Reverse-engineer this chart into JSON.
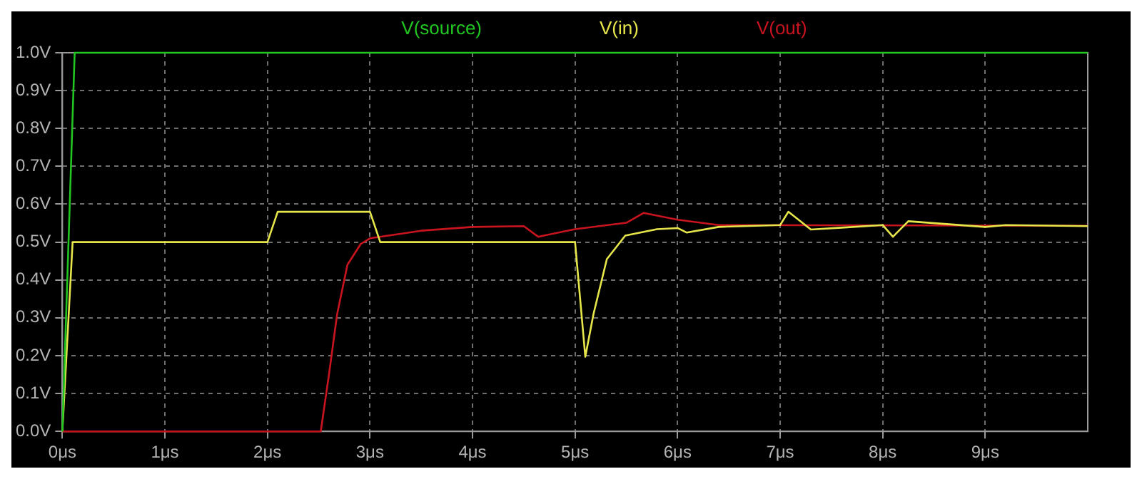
{
  "chart_data": {
    "type": "line",
    "xlim": [
      0,
      10
    ],
    "ylim": [
      0,
      1
    ],
    "xticks": [
      {
        "value": 0,
        "label": "0μs"
      },
      {
        "value": 1,
        "label": "1μs"
      },
      {
        "value": 2,
        "label": "2μs"
      },
      {
        "value": 3,
        "label": "3μs"
      },
      {
        "value": 4,
        "label": "4μs"
      },
      {
        "value": 5,
        "label": "5μs"
      },
      {
        "value": 6,
        "label": "6μs"
      },
      {
        "value": 7,
        "label": "7μs"
      },
      {
        "value": 8,
        "label": "8μs"
      },
      {
        "value": 9,
        "label": "9μs"
      }
    ],
    "yticks": [
      {
        "value": 0,
        "label": "0.0V"
      },
      {
        "value": 0.1,
        "label": "0.1V"
      },
      {
        "value": 0.2,
        "label": "0.2V"
      },
      {
        "value": 0.3,
        "label": "0.3V"
      },
      {
        "value": 0.4,
        "label": "0.4V"
      },
      {
        "value": 0.5,
        "label": "0.5V"
      },
      {
        "value": 0.6,
        "label": "0.6V"
      },
      {
        "value": 0.7,
        "label": "0.7V"
      },
      {
        "value": 0.8,
        "label": "0.8V"
      },
      {
        "value": 0.9,
        "label": "0.9V"
      },
      {
        "value": 1,
        "label": "1.0V"
      }
    ],
    "grid": true,
    "legend": "top",
    "marker": "none",
    "line_style": "solid",
    "series": [
      {
        "name": "V(source)",
        "color": "#22c622",
        "x": [
          0,
          0.12,
          10
        ],
        "values": [
          0,
          1,
          1
        ]
      },
      {
        "name": "V(in)",
        "color": "#e6e64a",
        "x": [
          0,
          0.1,
          2.0,
          2.1,
          3.0,
          3.1,
          5.0,
          5.1,
          5.18,
          5.31,
          5.49,
          5.8,
          6.0,
          6.09,
          6.4,
          7.0,
          7.08,
          7.3,
          7.6,
          8.0,
          8.1,
          8.25,
          8.6,
          9.0,
          9.2,
          10
        ],
        "values": [
          0,
          0.5,
          0.5,
          0.58,
          0.58,
          0.5,
          0.5,
          0.197,
          0.31,
          0.455,
          0.517,
          0.534,
          0.537,
          0.525,
          0.54,
          0.545,
          0.58,
          0.533,
          0.538,
          0.545,
          0.514,
          0.555,
          0.548,
          0.54,
          0.545,
          0.542
        ]
      },
      {
        "name": "V(out)",
        "color": "#c8141e",
        "x": [
          0,
          2.52,
          2.6,
          2.68,
          2.78,
          2.91,
          3.0,
          3.5,
          4.0,
          4.5,
          4.64,
          5.0,
          5.5,
          5.67,
          6.0,
          6.4,
          10
        ],
        "values": [
          0,
          0,
          0.15,
          0.31,
          0.44,
          0.495,
          0.51,
          0.53,
          0.54,
          0.542,
          0.514,
          0.534,
          0.551,
          0.577,
          0.559,
          0.545,
          0.543
        ]
      }
    ]
  }
}
